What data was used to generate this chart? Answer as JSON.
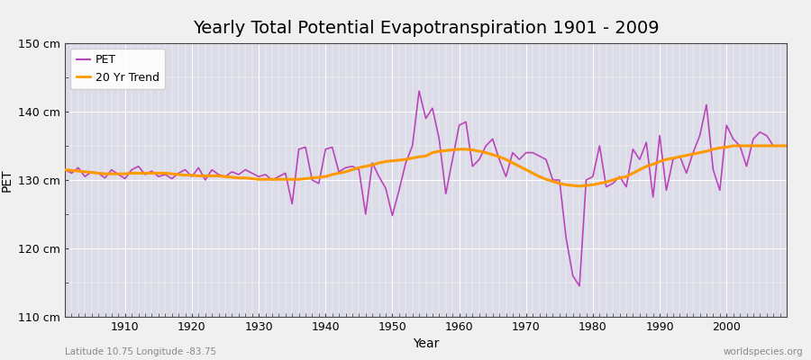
{
  "title": "Yearly Total Potential Evapotranspiration 1901 - 2009",
  "xlabel": "Year",
  "ylabel": "PET",
  "years": [
    1901,
    1902,
    1903,
    1904,
    1905,
    1906,
    1907,
    1908,
    1909,
    1910,
    1911,
    1912,
    1913,
    1914,
    1915,
    1916,
    1917,
    1918,
    1919,
    1920,
    1921,
    1922,
    1923,
    1924,
    1925,
    1926,
    1927,
    1928,
    1929,
    1930,
    1931,
    1932,
    1933,
    1934,
    1935,
    1936,
    1937,
    1938,
    1939,
    1940,
    1941,
    1942,
    1943,
    1944,
    1945,
    1946,
    1947,
    1948,
    1949,
    1950,
    1951,
    1952,
    1953,
    1954,
    1955,
    1956,
    1957,
    1958,
    1959,
    1960,
    1961,
    1962,
    1963,
    1964,
    1965,
    1966,
    1967,
    1968,
    1969,
    1970,
    1971,
    1972,
    1973,
    1974,
    1975,
    1976,
    1977,
    1978,
    1979,
    1980,
    1981,
    1982,
    1983,
    1984,
    1985,
    1986,
    1987,
    1988,
    1989,
    1990,
    1991,
    1992,
    1993,
    1994,
    1995,
    1996,
    1997,
    1998,
    1999,
    2000,
    2001,
    2002,
    2003,
    2004,
    2005,
    2006,
    2007,
    2008,
    2009
  ],
  "pet": [
    131.5,
    131.0,
    131.8,
    130.5,
    131.2,
    131.0,
    130.3,
    131.5,
    130.8,
    130.2,
    131.5,
    132.0,
    130.8,
    131.3,
    130.5,
    130.8,
    130.2,
    131.0,
    131.5,
    130.5,
    131.8,
    130.0,
    131.5,
    130.8,
    130.5,
    131.2,
    130.8,
    131.5,
    131.0,
    130.5,
    130.8,
    130.0,
    130.5,
    131.0,
    126.5,
    134.5,
    134.8,
    130.0,
    129.5,
    134.5,
    134.8,
    131.2,
    131.8,
    132.0,
    131.5,
    125.0,
    132.5,
    130.5,
    128.8,
    124.8,
    128.5,
    132.5,
    135.0,
    143.0,
    139.0,
    140.5,
    136.0,
    128.0,
    133.0,
    138.0,
    138.5,
    132.0,
    133.0,
    135.0,
    136.0,
    133.0,
    130.5,
    134.0,
    133.0,
    134.0,
    134.0,
    133.5,
    133.0,
    130.0,
    130.0,
    121.5,
    116.0,
    114.5,
    130.0,
    130.5,
    135.0,
    129.0,
    129.5,
    130.5,
    129.0,
    134.5,
    133.0,
    135.5,
    127.5,
    136.5,
    128.5,
    133.0,
    133.5,
    131.0,
    134.0,
    136.5,
    141.0,
    131.5,
    128.5,
    138.0,
    136.0,
    135.0,
    132.0,
    136.0,
    137.0,
    136.5,
    135.0,
    135.0,
    135.0
  ],
  "trend": [
    131.5,
    131.4,
    131.3,
    131.2,
    131.1,
    131.0,
    130.9,
    130.9,
    130.9,
    130.9,
    131.0,
    131.0,
    131.0,
    131.0,
    131.0,
    131.0,
    130.9,
    130.8,
    130.7,
    130.7,
    130.6,
    130.6,
    130.6,
    130.6,
    130.5,
    130.4,
    130.3,
    130.3,
    130.2,
    130.1,
    130.1,
    130.1,
    130.1,
    130.1,
    130.1,
    130.1,
    130.2,
    130.3,
    130.4,
    130.5,
    130.8,
    131.0,
    131.2,
    131.5,
    131.8,
    132.0,
    132.2,
    132.5,
    132.7,
    132.8,
    132.9,
    133.0,
    133.2,
    133.4,
    133.5,
    134.0,
    134.2,
    134.3,
    134.4,
    134.5,
    134.5,
    134.4,
    134.2,
    134.0,
    133.7,
    133.4,
    133.0,
    132.5,
    132.0,
    131.5,
    131.0,
    130.5,
    130.1,
    129.8,
    129.5,
    129.3,
    129.2,
    129.1,
    129.2,
    129.3,
    129.5,
    129.7,
    130.0,
    130.3,
    130.5,
    131.0,
    131.5,
    132.0,
    132.3,
    132.7,
    133.0,
    133.2,
    133.4,
    133.6,
    133.8,
    134.0,
    134.2,
    134.5,
    134.7,
    134.8,
    135.0,
    135.0,
    135.0,
    135.0,
    135.0,
    135.0,
    135.0,
    135.0,
    135.0
  ],
  "pet_color": "#bb44bb",
  "trend_color": "#ff9900",
  "fig_bg_color": "#f0f0f0",
  "plot_bg_color": "#dcdce8",
  "grid_color": "#ffffff",
  "ylim": [
    110,
    150
  ],
  "yticks": [
    110,
    120,
    130,
    140,
    150
  ],
  "ytick_labels": [
    "110 cm",
    "120 cm",
    "130 cm",
    "140 cm",
    "150 cm"
  ],
  "xtick_start": 1910,
  "xtick_end": 2000,
  "xtick_step": 10,
  "bottom_left_text": "Latitude 10.75 Longitude -83.75",
  "bottom_right_text": "worldspecies.org",
  "title_fontsize": 14,
  "axis_label_fontsize": 10,
  "tick_fontsize": 9,
  "legend_fontsize": 9,
  "pet_linewidth": 1.2,
  "trend_linewidth": 2.2
}
